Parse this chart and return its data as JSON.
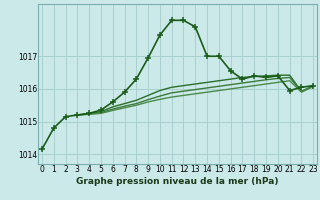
{
  "title": "Graphe pression niveau de la mer (hPa)",
  "background_color": "#cce9e9",
  "grid_color": "#aad0d0",
  "xlim": [
    -0.3,
    23.3
  ],
  "ylim": [
    1013.7,
    1018.6
  ],
  "xticks": [
    0,
    1,
    2,
    3,
    4,
    5,
    6,
    7,
    8,
    9,
    10,
    11,
    12,
    13,
    14,
    15,
    16,
    17,
    18,
    19,
    20,
    21,
    22,
    23
  ],
  "yticks": [
    1014,
    1015,
    1016,
    1017
  ],
  "series": [
    {
      "x": [
        0,
        1,
        2,
        3,
        4,
        5,
        6,
        7,
        8,
        9,
        10,
        11,
        12,
        13,
        14,
        15,
        16,
        17,
        18,
        19,
        20,
        21,
        22,
        23
      ],
      "y": [
        1014.15,
        1014.8,
        1015.15,
        1015.2,
        1015.25,
        1015.35,
        1015.6,
        1015.9,
        1016.3,
        1016.95,
        1017.65,
        1018.1,
        1018.1,
        1017.9,
        1017.0,
        1017.0,
        1016.55,
        1016.3,
        1016.4,
        1016.35,
        1016.4,
        1015.95,
        1016.05,
        1016.1
      ],
      "color": "#1a5c1a",
      "linewidth": 1.2,
      "marker": "+"
    },
    {
      "x": [
        3,
        4,
        5,
        6,
        7,
        8,
        9,
        10,
        11,
        12,
        13,
        14,
        15,
        16,
        17,
        18,
        19,
        20,
        21,
        22,
        23
      ],
      "y": [
        1015.2,
        1015.25,
        1015.3,
        1015.45,
        1015.55,
        1015.65,
        1015.8,
        1015.95,
        1016.05,
        1016.1,
        1016.15,
        1016.2,
        1016.25,
        1016.3,
        1016.35,
        1016.38,
        1016.4,
        1016.42,
        1016.42,
        1015.92,
        1016.1
      ],
      "color": "#2a6e2a",
      "linewidth": 1.0,
      "marker": null
    },
    {
      "x": [
        3,
        4,
        5,
        6,
        7,
        8,
        9,
        10,
        11,
        12,
        13,
        14,
        15,
        16,
        17,
        18,
        19,
        20,
        21,
        22,
        23
      ],
      "y": [
        1015.2,
        1015.23,
        1015.27,
        1015.38,
        1015.47,
        1015.55,
        1015.67,
        1015.78,
        1015.88,
        1015.93,
        1015.98,
        1016.03,
        1016.08,
        1016.13,
        1016.18,
        1016.23,
        1016.28,
        1016.32,
        1016.35,
        1015.92,
        1016.08
      ],
      "color": "#3a7a3a",
      "linewidth": 1.0,
      "marker": null
    },
    {
      "x": [
        3,
        4,
        5,
        6,
        7,
        8,
        9,
        10,
        11,
        12,
        13,
        14,
        15,
        16,
        17,
        18,
        19,
        20,
        21,
        22,
        23
      ],
      "y": [
        1015.2,
        1015.22,
        1015.25,
        1015.34,
        1015.42,
        1015.5,
        1015.6,
        1015.68,
        1015.75,
        1015.8,
        1015.85,
        1015.9,
        1015.95,
        1016.0,
        1016.05,
        1016.1,
        1016.15,
        1016.2,
        1016.25,
        1015.9,
        1016.07
      ],
      "color": "#4a8a4a",
      "linewidth": 1.0,
      "marker": null
    }
  ],
  "tick_fontsize": 5.5,
  "title_fontsize": 6.5,
  "title_fontweight": "bold"
}
